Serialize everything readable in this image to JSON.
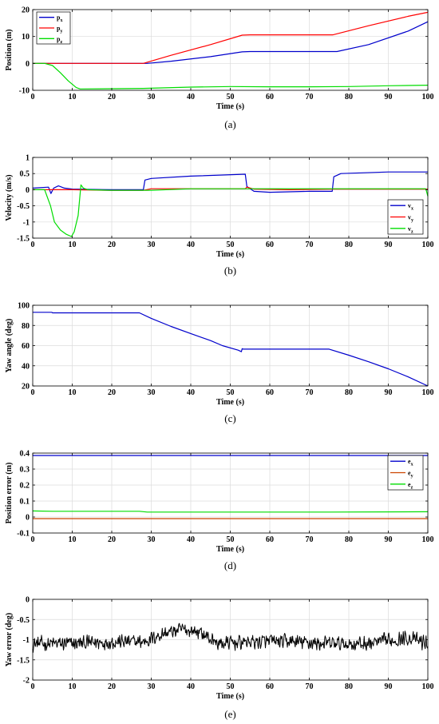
{
  "chart_data": [
    {
      "type": "line",
      "caption": "(a)",
      "xlabel": "Time (s)",
      "ylabel": "Position (m)",
      "xlim": [
        0,
        100
      ],
      "ylim": [
        -10,
        20
      ],
      "xticks": [
        0,
        10,
        20,
        30,
        40,
        50,
        60,
        70,
        80,
        90,
        100
      ],
      "yticks": [
        -10,
        0,
        10,
        20
      ],
      "grid": true,
      "legend": "top-left",
      "series": [
        {
          "name": "p",
          "sub": "x",
          "color": "#0000cc",
          "x": [
            0,
            10,
            20,
            29,
            35,
            45,
            53,
            55,
            65,
            77,
            85,
            95,
            100
          ],
          "y": [
            0,
            0,
            0,
            0,
            0.8,
            2.5,
            4.3,
            4.4,
            4.4,
            4.4,
            7.0,
            12.0,
            15.5
          ]
        },
        {
          "name": "p",
          "sub": "y",
          "color": "#ff0000",
          "x": [
            0,
            10,
            20,
            28,
            35,
            45,
            53,
            55,
            65,
            76,
            85,
            95,
            100
          ],
          "y": [
            0,
            0,
            0,
            0,
            3.0,
            7.0,
            10.5,
            10.6,
            10.6,
            10.6,
            14.0,
            17.5,
            19.0
          ]
        },
        {
          "name": "p",
          "sub": "z",
          "color": "#00dd00",
          "x": [
            0,
            3,
            5,
            7,
            9,
            11,
            12,
            20,
            28,
            40,
            50,
            60,
            70,
            80,
            90,
            100
          ],
          "y": [
            0,
            0,
            -0.8,
            -3.5,
            -6.5,
            -9.0,
            -9.5,
            -9.4,
            -9.3,
            -8.8,
            -8.6,
            -8.7,
            -8.7,
            -8.6,
            -8.3,
            -8.1
          ]
        }
      ]
    },
    {
      "type": "line",
      "caption": "(b)",
      "xlabel": "Time (s)",
      "ylabel": "Velocity (m/s)",
      "xlim": [
        0,
        100
      ],
      "ylim": [
        -1.5,
        1
      ],
      "xticks": [
        0,
        10,
        20,
        30,
        40,
        50,
        60,
        70,
        80,
        90,
        100
      ],
      "yticks": [
        -1.5,
        -1,
        -0.5,
        0,
        0.5,
        1
      ],
      "grid": true,
      "legend": "bottom-right",
      "series": [
        {
          "name": "v",
          "sub": "x",
          "color": "#0000cc",
          "x": [
            0,
            4,
            4.6,
            5.3,
            6.5,
            8,
            10,
            20,
            28,
            28.4,
            30,
            40,
            53.8,
            54.2,
            56,
            60,
            70,
            75.8,
            76.2,
            78,
            90,
            100
          ],
          "y": [
            0.05,
            0.08,
            -0.12,
            0.05,
            0.12,
            0.05,
            0.02,
            0,
            0,
            0.3,
            0.35,
            0.42,
            0.48,
            0.1,
            -0.05,
            -0.08,
            -0.05,
            -0.05,
            0.4,
            0.5,
            0.55,
            0.55
          ]
        },
        {
          "name": "v",
          "sub": "y",
          "color": "#ff0000",
          "x": [
            0,
            10,
            20,
            28,
            30,
            40,
            53.8,
            54.2,
            56,
            65,
            76,
            78,
            90,
            100
          ],
          "y": [
            0,
            0,
            -0.02,
            -0.02,
            0.03,
            0.03,
            0.03,
            0.08,
            0.02,
            0,
            0.02,
            0.02,
            0.02,
            0.02
          ]
        },
        {
          "name": "v",
          "sub": "z",
          "color": "#00dd00",
          "x": [
            0,
            3,
            4.5,
            5.5,
            7,
            8.5,
            9.8,
            10.5,
            11.5,
            12.2,
            12.8,
            14,
            20,
            30,
            40,
            50,
            60,
            70,
            80,
            90,
            99.5,
            100
          ],
          "y": [
            0,
            0,
            -0.5,
            -1.0,
            -1.25,
            -1.38,
            -1.45,
            -1.3,
            -0.8,
            0.15,
            0.05,
            0,
            -0.02,
            -0.02,
            0.03,
            0.03,
            0.03,
            0.03,
            0.03,
            0.03,
            0.03,
            -0.2
          ]
        }
      ]
    },
    {
      "type": "line",
      "caption": "(c)",
      "xlabel": "Time (s)",
      "ylabel": "Yaw angle (deg)",
      "xlim": [
        0,
        100
      ],
      "ylim": [
        20,
        100
      ],
      "xticks": [
        0,
        10,
        20,
        30,
        40,
        50,
        60,
        70,
        80,
        90,
        100
      ],
      "yticks": [
        20,
        40,
        60,
        80,
        100
      ],
      "grid": true,
      "legend": "none",
      "series": [
        {
          "name": "",
          "sub": "",
          "color": "#0000cc",
          "x": [
            0,
            4.8,
            5,
            10,
            20,
            27,
            30,
            35,
            40,
            45,
            48,
            52,
            52.8,
            53,
            53.3,
            60,
            70,
            75,
            80,
            85,
            90,
            95,
            100
          ],
          "y": [
            93,
            93,
            92.5,
            92.5,
            92.5,
            92.5,
            87,
            79,
            72,
            65,
            60,
            55.5,
            54,
            57,
            56.5,
            56.5,
            56.5,
            56.5,
            50.5,
            44,
            37,
            29,
            20
          ]
        }
      ]
    },
    {
      "type": "line",
      "caption": "(d)",
      "xlabel": "Time (s)",
      "ylabel": "Position error (m)",
      "xlim": [
        0,
        100
      ],
      "ylim": [
        -0.1,
        0.4
      ],
      "xticks": [
        0,
        10,
        20,
        30,
        40,
        50,
        60,
        70,
        80,
        90,
        100
      ],
      "yticks": [
        -0.1,
        0,
        0.1,
        0.2,
        0.3,
        0.4
      ],
      "grid": true,
      "legend": "right",
      "series": [
        {
          "name": "e",
          "sub": "x",
          "color": "#0000cc",
          "x": [
            0,
            25,
            50,
            75,
            100
          ],
          "y": [
            0.385,
            0.385,
            0.385,
            0.385,
            0.385
          ]
        },
        {
          "name": "e",
          "sub": "y",
          "color": "#cc4400",
          "x": [
            0,
            25,
            50,
            75,
            100
          ],
          "y": [
            -0.01,
            -0.01,
            -0.01,
            -0.01,
            -0.01
          ]
        },
        {
          "name": "e",
          "sub": "z",
          "color": "#00dd00",
          "x": [
            0,
            5,
            27,
            29,
            50,
            75,
            100
          ],
          "y": [
            0.038,
            0.036,
            0.036,
            0.031,
            0.031,
            0.031,
            0.033
          ]
        }
      ]
    },
    {
      "type": "line",
      "caption": "(e)",
      "xlabel": "Time (s)",
      "ylabel": "Yaw error (deg)",
      "xlim": [
        0,
        100
      ],
      "ylim": [
        -2,
        0
      ],
      "xticks": [
        0,
        10,
        20,
        30,
        40,
        50,
        60,
        70,
        80,
        90,
        100
      ],
      "yticks": [
        -2,
        -1.5,
        -1,
        -0.5,
        0
      ],
      "grid": true,
      "legend": "none",
      "series": [
        {
          "name": "",
          "sub": "",
          "color": "#000000",
          "mean_profile": {
            "x": [
              0,
              10,
              20,
              28,
              33,
              38,
              42,
              47,
              55,
              65,
              75,
              85,
              95,
              100
            ],
            "y": [
              -1.1,
              -1.1,
              -1.05,
              -1.05,
              -0.85,
              -0.75,
              -0.8,
              -1.1,
              -1.05,
              -1.05,
              -1.1,
              -1.1,
              -0.95,
              -1.1
            ]
          },
          "noise_amplitude": 0.22,
          "extremes": {
            "max": -0.2,
            "min": -1.6
          }
        }
      ]
    }
  ]
}
